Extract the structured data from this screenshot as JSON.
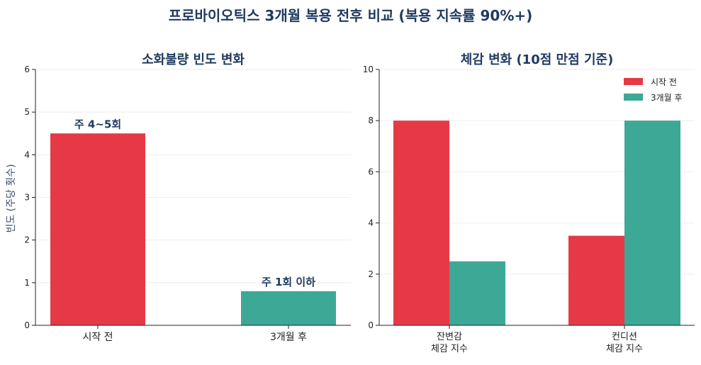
{
  "title": "프로바이오틱스 3개월 복용 전후 비교 (복용 지속률 90%+)",
  "colors": {
    "before": "#e63946",
    "after": "#3da896",
    "title": "#1f3a5f"
  },
  "chart_data": [
    {
      "type": "bar",
      "title": "소화불량 빈도 변화",
      "ylabel": "빈도 (주당 횟수)",
      "xlabel": "",
      "ylim": [
        0,
        6
      ],
      "yticks": [
        "0",
        "1",
        "2",
        "3",
        "4",
        "5",
        "6"
      ],
      "categories": [
        "시작 전",
        "3개월 후"
      ],
      "values": [
        4.5,
        0.8
      ],
      "data_labels": [
        "주 4~5회",
        "주 1회 이하"
      ],
      "grid": true
    },
    {
      "type": "bar",
      "title": "체감 변화 (10점 만점 기준)",
      "ylabel": "",
      "xlabel": "",
      "ylim": [
        0,
        10
      ],
      "yticks": [
        "0",
        "2",
        "4",
        "6",
        "8",
        "10"
      ],
      "categories": [
        [
          "잔변감",
          "체감 지수"
        ],
        [
          "컨디션",
          "체감 지수"
        ]
      ],
      "series": [
        {
          "name": "시작 전",
          "values": [
            8,
            3.5
          ]
        },
        {
          "name": "3개월 후",
          "values": [
            2.5,
            8
          ]
        }
      ],
      "legend": "top-right",
      "grid": true
    }
  ]
}
